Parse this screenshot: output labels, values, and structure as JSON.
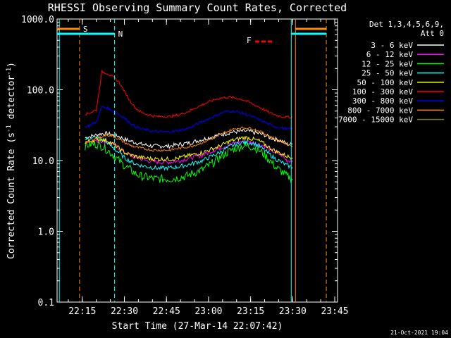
{
  "chart_data": {
    "type": "line",
    "title": "RHESSI Observing Summary Count Rates, Corrected",
    "xlabel": "Start Time (27-Mar-14 22:07:42)",
    "ylabel": "Corrected Count Rate (s",
    "ylabel_sup": "-1",
    "ylabel_mid": " detector",
    "ylabel_end": ")",
    "y_scale": "log",
    "ylim": [
      0.1,
      1000
    ],
    "xlim_minutes": [
      6.0,
      106.0
    ],
    "x_ticks": [
      {
        "m": 15,
        "label": "22:15"
      },
      {
        "m": 30,
        "label": "22:30"
      },
      {
        "m": 45,
        "label": "22:45"
      },
      {
        "m": 60,
        "label": "23:00"
      },
      {
        "m": 75,
        "label": "23:15"
      },
      {
        "m": 90,
        "label": "23:30"
      },
      {
        "m": 105,
        "label": "23:45"
      }
    ],
    "y_ticks": [
      {
        "v": 0.1,
        "label": "0.1"
      },
      {
        "v": 1,
        "label": "1.0"
      },
      {
        "v": 10,
        "label": "10.0"
      },
      {
        "v": 100,
        "label": "100.0"
      },
      {
        "v": 1000,
        "label": "1000.0"
      }
    ],
    "legend_header": [
      "Det 1,3,4,5,6,9,",
      "Att 0"
    ],
    "legend_placement": "right",
    "x_minutes": [
      8,
      10,
      12,
      14,
      16,
      18,
      20,
      22,
      24,
      26,
      28,
      30,
      32,
      34,
      36,
      38,
      40,
      42,
      44,
      46,
      48,
      50,
      52,
      54,
      56,
      58,
      60,
      62,
      64,
      66,
      68,
      70,
      72,
      74,
      76,
      78,
      80,
      82,
      84,
      86,
      88,
      90
    ],
    "series": [
      {
        "name": "3 - 6 keV",
        "color": "#ffffff",
        "values": [
          null,
          null,
          null,
          null,
          21,
          22,
          23,
          24,
          24,
          23,
          22,
          20,
          19,
          18,
          17,
          16.5,
          16,
          16,
          16,
          16,
          16.5,
          17,
          17.5,
          18,
          19,
          20,
          21,
          22,
          23,
          24,
          25,
          25.5,
          26,
          26,
          25,
          24,
          23,
          21,
          20,
          19,
          17,
          17
        ]
      },
      {
        "name": "6 - 12 keV",
        "color": "#ff00ff",
        "values": [
          null,
          null,
          null,
          null,
          18,
          19,
          19,
          19,
          18,
          17,
          15,
          13,
          12,
          11,
          10.5,
          10,
          9.7,
          9.5,
          9.5,
          9.5,
          9.7,
          10,
          10.5,
          11,
          11.5,
          12,
          13,
          14,
          15,
          16,
          17,
          18,
          18.5,
          18.5,
          18,
          17,
          16,
          14,
          13,
          12,
          10,
          10
        ]
      },
      {
        "name": "12 - 25 keV",
        "color": "#00ff00",
        "values": [
          null,
          null,
          null,
          null,
          16,
          17,
          17,
          16,
          14,
          12,
          10,
          8.5,
          7.5,
          6.5,
          6,
          5.8,
          5.6,
          5.5,
          5.5,
          5.5,
          5.6,
          5.8,
          6,
          6.5,
          7,
          7.5,
          8.5,
          9.5,
          11,
          12.5,
          14,
          15,
          16,
          16,
          15.5,
          14,
          12,
          10,
          8,
          7,
          6,
          5.5
        ]
      },
      {
        "name": "25 - 50 keV",
        "color": "#00ffff",
        "values": [
          null,
          null,
          null,
          null,
          20,
          21,
          21,
          20,
          18,
          15,
          13,
          11,
          9.8,
          9,
          8.5,
          8.2,
          8,
          7.8,
          7.8,
          7.9,
          8,
          8.3,
          8.6,
          9,
          9.5,
          10,
          11,
          12,
          13,
          14.5,
          16,
          17,
          18,
          18,
          17.5,
          16,
          14,
          12,
          10.5,
          9.5,
          8.5,
          8
        ]
      },
      {
        "name": "50 - 100 keV",
        "color": "#ffff00",
        "values": [
          null,
          null,
          null,
          null,
          18,
          19,
          20,
          20,
          19,
          17,
          15,
          13,
          12,
          11.5,
          11,
          10.8,
          10.6,
          10.5,
          10.5,
          10.5,
          10.6,
          11,
          11.5,
          12,
          12.5,
          13,
          14,
          15,
          16,
          17.5,
          19,
          20,
          21,
          21,
          20,
          19,
          17,
          15,
          13.5,
          12.5,
          11.5,
          11
        ]
      },
      {
        "name": "100 - 300 keV",
        "color": "#ff0000",
        "values": [
          null,
          null,
          null,
          null,
          45,
          48,
          52,
          180,
          170,
          150,
          130,
          95,
          70,
          55,
          48,
          45,
          43,
          42,
          42,
          42,
          43,
          45,
          48,
          52,
          57,
          62,
          67,
          72,
          76,
          78,
          78,
          76,
          73,
          68,
          62,
          57,
          52,
          47,
          44,
          42,
          41,
          41
        ]
      },
      {
        "name": "300 - 800 keV",
        "color": "#0000ff",
        "values": [
          null,
          null,
          null,
          null,
          30,
          32,
          35,
          58,
          55,
          50,
          45,
          40,
          34,
          30,
          28,
          27,
          26,
          25.5,
          25.5,
          25.5,
          26,
          27,
          28,
          30,
          33,
          36,
          39,
          42,
          46,
          49,
          50,
          49,
          47,
          44,
          41,
          38,
          35,
          32,
          30,
          29,
          28,
          28
        ]
      },
      {
        "name": "800 - 7000 keV",
        "color": "#ff8800",
        "values": [
          null,
          null,
          null,
          null,
          18,
          19,
          20,
          22,
          23,
          22,
          20,
          18,
          16.5,
          15.5,
          15,
          14.5,
          14,
          14,
          14,
          14,
          14.5,
          15,
          15.5,
          16,
          17,
          18,
          19.5,
          21,
          23,
          25,
          27,
          28.5,
          29,
          29,
          28,
          26,
          24,
          22,
          20,
          18.5,
          17,
          16
        ]
      },
      {
        "name": "7000 - 15000 keV",
        "color": "#808000",
        "values": []
      }
    ],
    "pre_segment_minutes": [
      6.5,
      7.5
    ],
    "pre_segment_values": [
      20,
      18
    ],
    "post_segment_minutes": [
      91,
      93
    ],
    "post_segment_values": [
      20,
      16
    ],
    "annotations": [
      {
        "label": "S",
        "color": "#ff8800"
      },
      {
        "label": "N",
        "color": "#00ffff"
      },
      {
        "label": "F",
        "color": "#ff0000"
      }
    ],
    "footer_date": "21-Oct-2021 19:04"
  }
}
